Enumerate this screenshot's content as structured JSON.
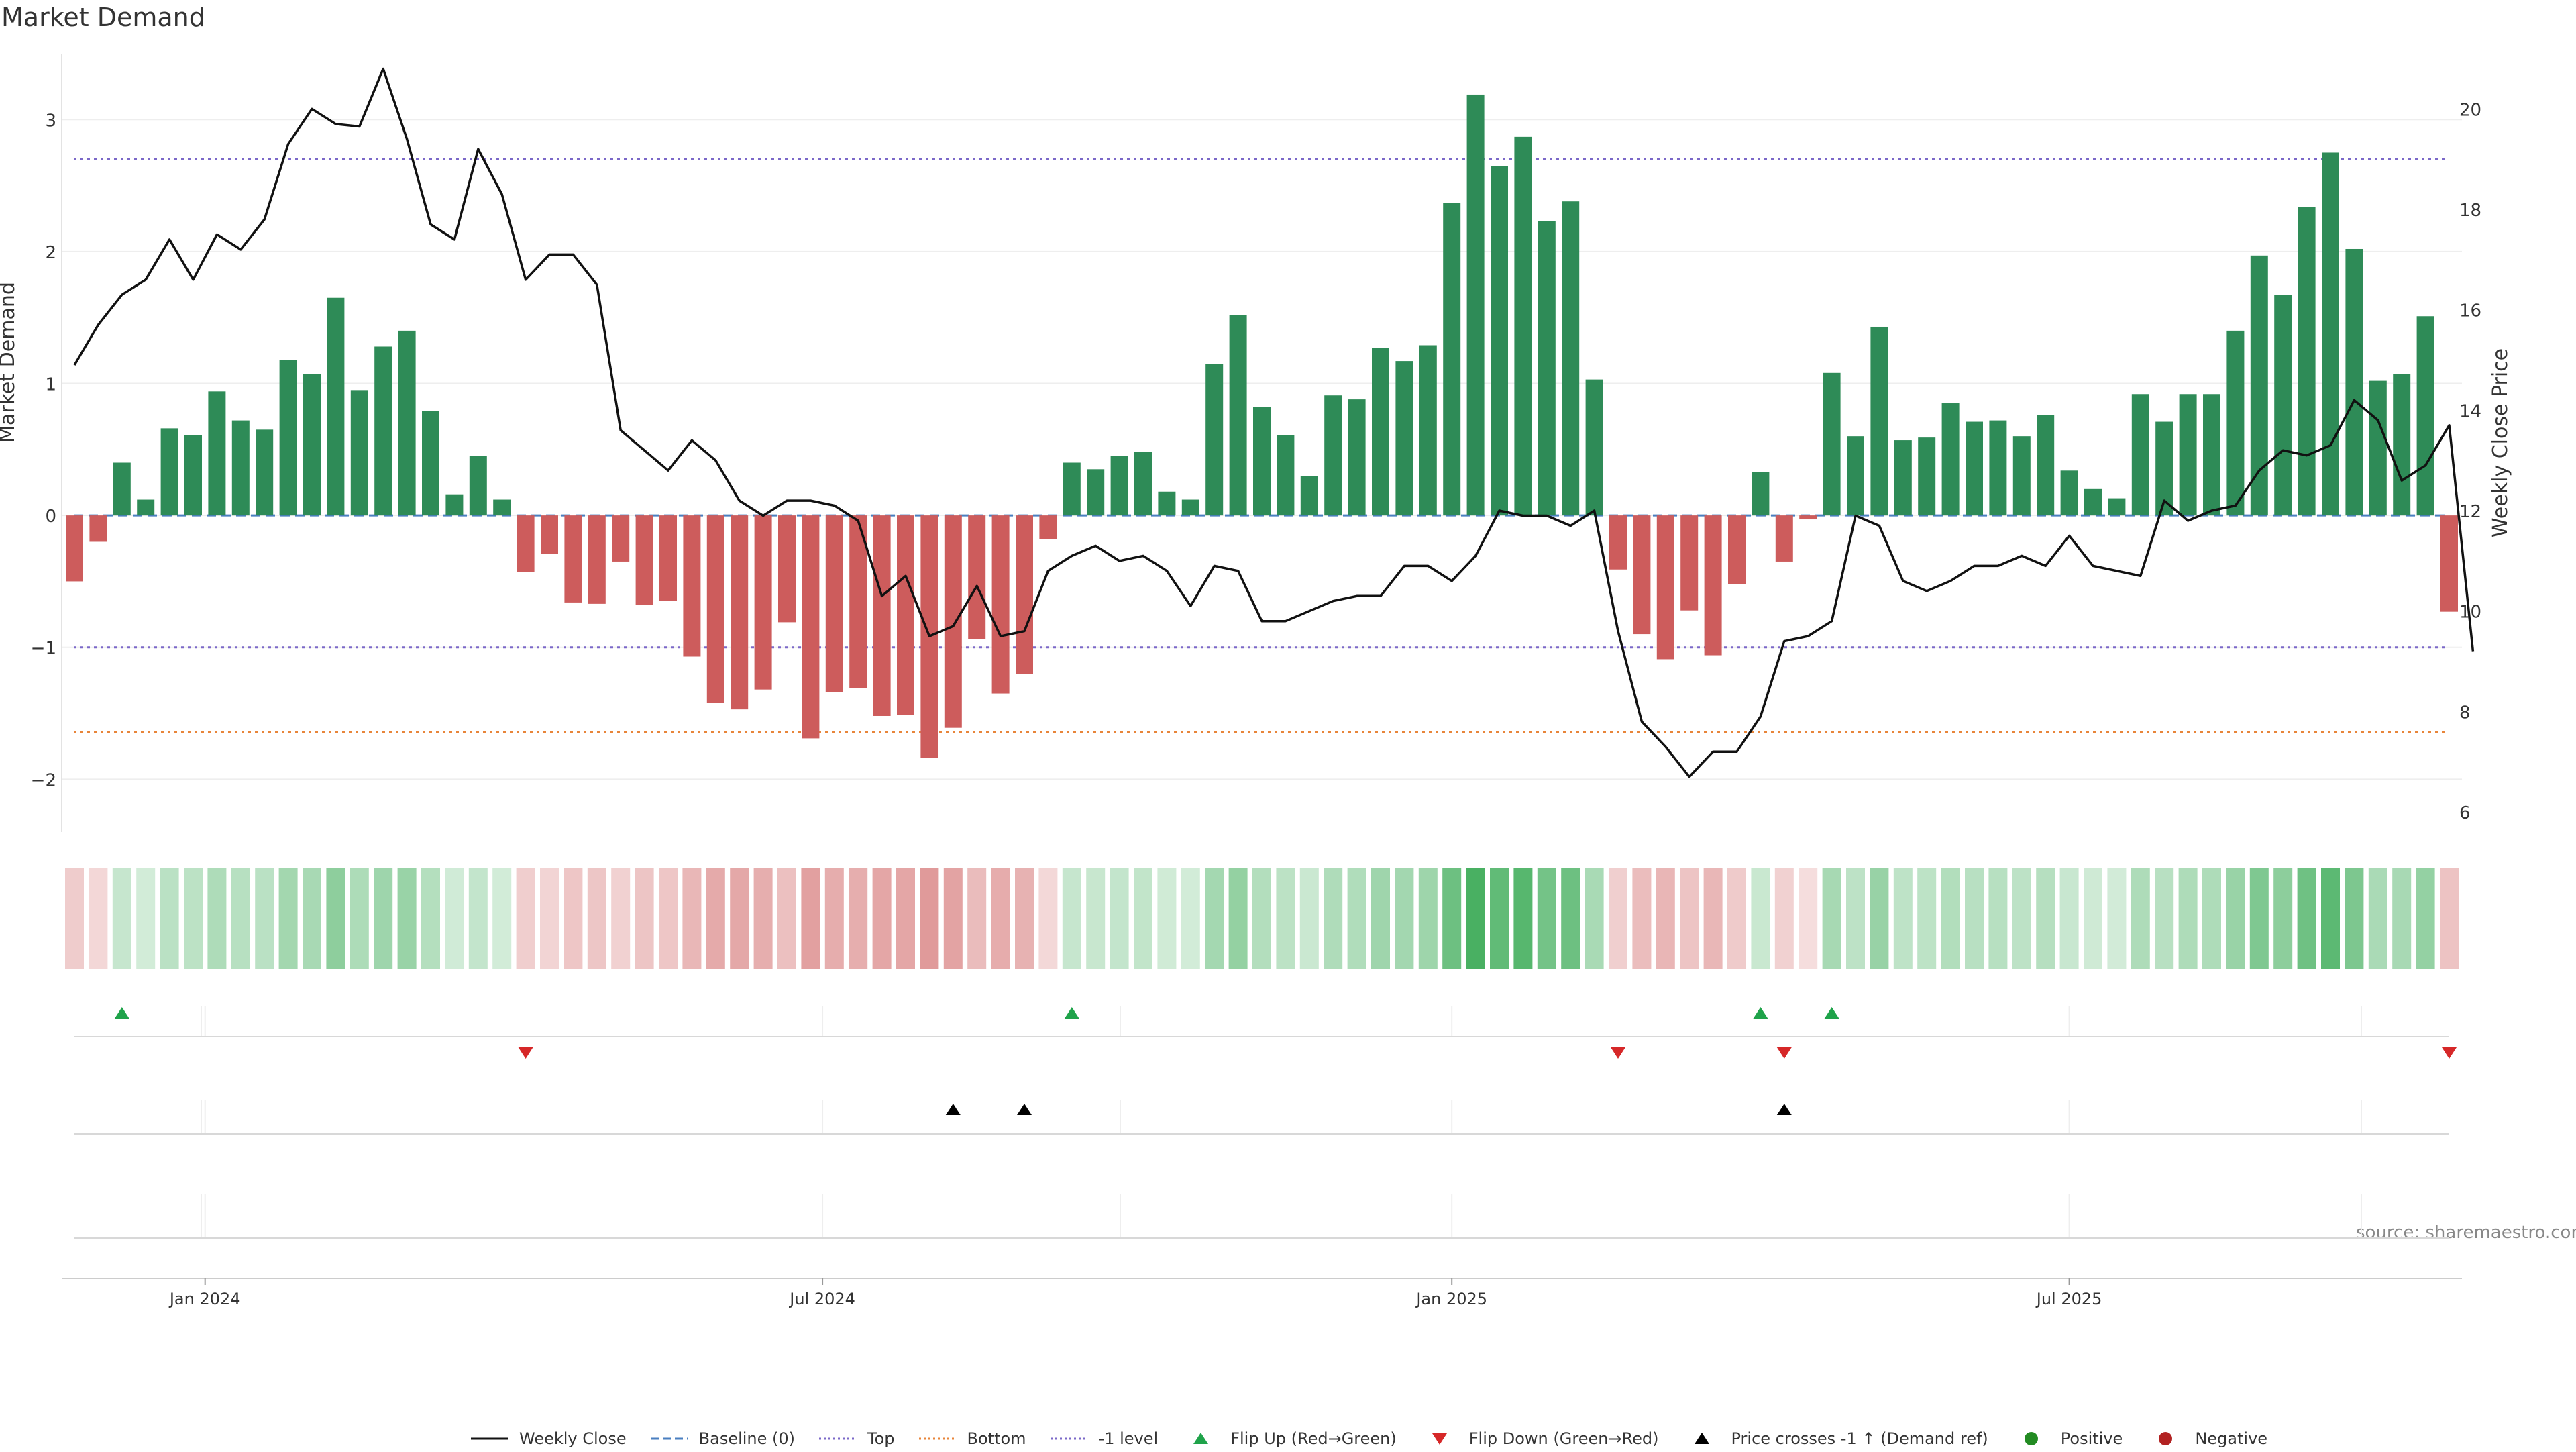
{
  "chart_data": {
    "type": "bar",
    "title": "Market Demand",
    "ylabel": "Market Demand",
    "y2label": "Weekly Close Price",
    "ylim": [
      -2.4,
      3.5
    ],
    "y2lim": [
      5.6,
      21.1
    ],
    "yticks": [
      3,
      2,
      1,
      0,
      -1,
      -2
    ],
    "ytick_labels": [
      "3",
      "2",
      "1",
      "0",
      "−1",
      "−2"
    ],
    "y2ticks": [
      20,
      18,
      16,
      14,
      12,
      10,
      8,
      6
    ],
    "y2tick_labels": [
      "20",
      "18",
      "16",
      "14",
      "12",
      "10",
      "8",
      "6"
    ],
    "x_ticks": [
      {
        "label": "Jan 2024",
        "week": 5.5
      },
      {
        "label": "Jul 2024",
        "week": 31.5
      },
      {
        "label": "Jan 2025",
        "week": 58
      },
      {
        "label": "Jul 2025",
        "week": 84
      }
    ],
    "reference_lines": {
      "top": 2.7,
      "bottom": -1.64,
      "minus_one_level": -1,
      "baseline": 0
    },
    "colors": {
      "positive": "#2e8b57",
      "negative": "#cd5c5c",
      "price": "#111111",
      "top_line": "#7b68c8",
      "bottom_line": "#e8853a",
      "minus_one_line": "#7b68c8",
      "baseline": "#4a7fc0",
      "flip_up": "#1fa34a",
      "flip_down": "#d62728",
      "cross": "#000000",
      "pos_dot": "#228b22",
      "neg_dot": "#b22222"
    },
    "demand": [
      -0.5,
      -0.2,
      0.4,
      0.12,
      0.66,
      0.61,
      0.94,
      0.72,
      0.65,
      1.18,
      1.07,
      1.65,
      0.95,
      1.28,
      1.4,
      0.79,
      0.16,
      0.45,
      0.12,
      -0.43,
      -0.29,
      -0.66,
      -0.67,
      -0.35,
      -0.68,
      -0.65,
      -1.07,
      -1.42,
      -1.47,
      -1.32,
      -0.81,
      -1.69,
      -1.34,
      -1.31,
      -1.52,
      -1.51,
      -1.84,
      -1.61,
      -0.94,
      -1.35,
      -1.2,
      -0.18,
      0.4,
      0.35,
      0.45,
      0.48,
      0.18,
      0.12,
      1.15,
      1.52,
      0.82,
      0.61,
      0.3,
      0.91,
      0.88,
      1.27,
      1.17,
      1.29,
      2.37,
      3.19,
      2.65,
      2.87,
      2.23,
      2.38,
      1.03,
      -0.41,
      -0.9,
      -1.09,
      -0.72,
      -1.06,
      -0.52,
      0.33,
      -0.35,
      -0.03,
      1.08,
      0.6,
      1.43,
      0.57,
      0.59,
      0.85,
      0.71,
      0.72,
      0.6,
      0.76,
      0.34,
      0.2,
      0.13,
      0.92,
      0.71,
      0.92,
      0.92,
      1.4,
      1.97,
      1.67,
      2.34,
      2.75,
      2.02,
      1.02,
      1.07,
      1.51,
      -0.73
    ],
    "price": [
      14.9,
      15.7,
      16.3,
      16.6,
      17.4,
      16.6,
      17.5,
      17.2,
      17.8,
      19.3,
      20.0,
      19.7,
      19.65,
      20.8,
      19.4,
      17.7,
      17.4,
      19.2,
      18.3,
      16.6,
      17.1,
      17.1,
      16.5,
      13.6,
      13.2,
      12.8,
      13.4,
      13.0,
      12.2,
      11.9,
      12.2,
      12.2,
      12.1,
      11.8,
      10.3,
      10.7,
      9.5,
      9.7,
      10.5,
      9.5,
      9.6,
      10.8,
      11.1,
      11.3,
      11.0,
      11.1,
      10.8,
      10.1,
      10.9,
      10.8,
      9.8,
      9.8,
      10.0,
      10.2,
      10.3,
      10.3,
      10.9,
      10.9,
      10.6,
      11.1,
      12.0,
      11.9,
      11.9,
      11.7,
      12.0,
      9.6,
      7.8,
      7.3,
      6.7,
      7.2,
      7.2,
      7.9,
      9.4,
      9.5,
      9.8,
      11.9,
      11.7,
      10.6,
      10.4,
      10.6,
      10.9,
      10.9,
      11.1,
      10.9,
      11.5,
      10.9,
      10.8,
      10.7,
      12.2,
      11.8,
      12.0,
      12.1,
      12.8,
      13.2,
      13.1,
      13.3,
      14.2,
      13.8,
      12.6,
      12.9,
      13.7,
      9.2
    ],
    "flip_up_weeks": [
      2,
      42,
      71,
      74
    ],
    "flip_down_weeks": [
      19,
      65,
      72,
      100
    ],
    "cross_weeks": [
      37,
      40,
      72
    ],
    "legend": [
      {
        "label": "Weekly Close",
        "symbol": "solid-line"
      },
      {
        "label": "Baseline (0)",
        "symbol": "dashed-line"
      },
      {
        "label": "Top",
        "symbol": "dotted-line-purple"
      },
      {
        "label": "Bottom",
        "symbol": "dotted-line-orange"
      },
      {
        "label": "-1 level",
        "symbol": "dotted-line-purple"
      },
      {
        "label": "Flip Up (Red→Green)",
        "symbol": "triangle-up-green"
      },
      {
        "label": "Flip Down (Green→Red)",
        "symbol": "triangle-down-red"
      },
      {
        "label": "Price crosses -1 ↑ (Demand ref)",
        "symbol": "triangle-up-black"
      },
      {
        "label": "Positive",
        "symbol": "dot-green"
      },
      {
        "label": "Negative",
        "symbol": "dot-red"
      }
    ]
  },
  "source_note": "source: sharemaestro.com"
}
